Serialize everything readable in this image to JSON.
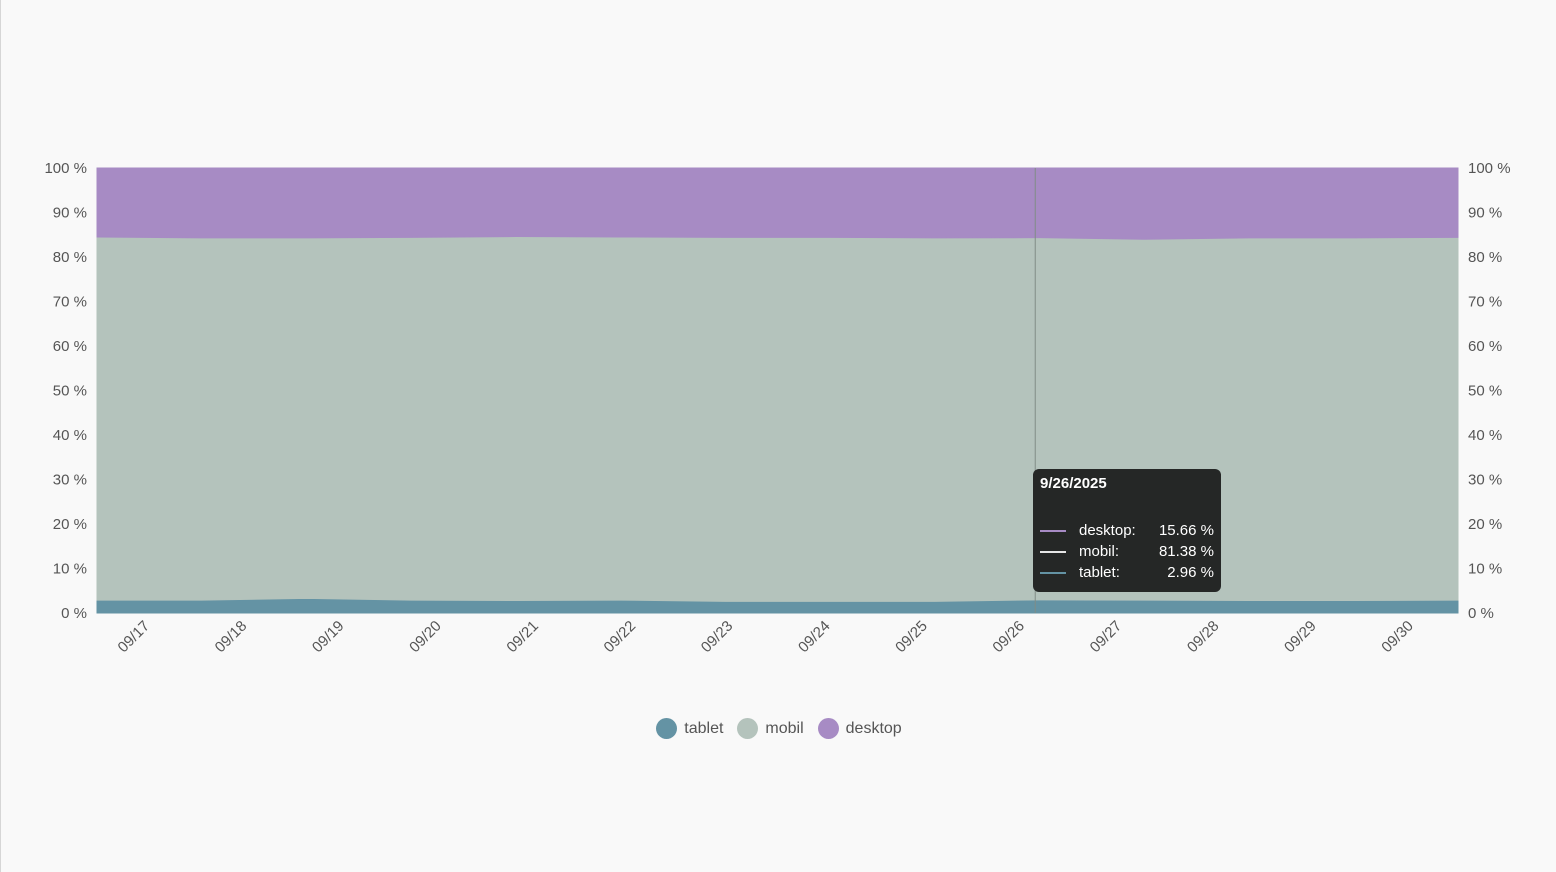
{
  "chart_data": {
    "type": "area",
    "stacked": true,
    "normalized": true,
    "categories": [
      "09/17",
      "09/18",
      "09/19",
      "09/20",
      "09/21",
      "09/22",
      "09/23",
      "09/24",
      "09/25",
      "09/26",
      "09/27",
      "09/28",
      "09/29",
      "09/30"
    ],
    "series": [
      {
        "name": "tablet",
        "color": "#6493a4",
        "values": [
          2.9,
          2.9,
          3.3,
          2.9,
          2.8,
          2.9,
          2.6,
          2.6,
          2.6,
          2.96,
          2.9,
          2.8,
          2.8,
          2.9
        ]
      },
      {
        "name": "mobil",
        "color": "#b4c3bc",
        "values": [
          81.6,
          81.4,
          81.0,
          81.5,
          81.8,
          81.6,
          81.8,
          81.8,
          81.7,
          81.38,
          81.1,
          81.5,
          81.5,
          81.5
        ]
      },
      {
        "name": "desktop",
        "color": "#a78bc4",
        "values": [
          15.5,
          15.7,
          15.7,
          15.6,
          15.4,
          15.5,
          15.6,
          15.6,
          15.7,
          15.66,
          16.0,
          15.7,
          15.7,
          15.6
        ]
      }
    ],
    "y_ticks": [
      "0 %",
      "10 %",
      "20 %",
      "30 %",
      "40 %",
      "50 %",
      "60 %",
      "70 %",
      "80 %",
      "90 %",
      "100 %"
    ],
    "ylim": [
      0,
      100
    ],
    "dual_y_axis": true,
    "legend_position": "bottom-center",
    "hover_index": 9
  },
  "legend": [
    {
      "label": "tablet",
      "color": "#6493a4"
    },
    {
      "label": "mobil",
      "color": "#b4c3bc"
    },
    {
      "label": "desktop",
      "color": "#a78bc4"
    }
  ],
  "tooltip": {
    "date": "9/26/2025",
    "rows": [
      {
        "name": "desktop:",
        "value": "15.66 %",
        "color": "#a78bc4"
      },
      {
        "name": "mobil:",
        "value": "81.38 %",
        "color": "#e6e6e6"
      },
      {
        "name": "tablet:",
        "value": "2.96 %",
        "color": "#6493a4"
      }
    ]
  }
}
